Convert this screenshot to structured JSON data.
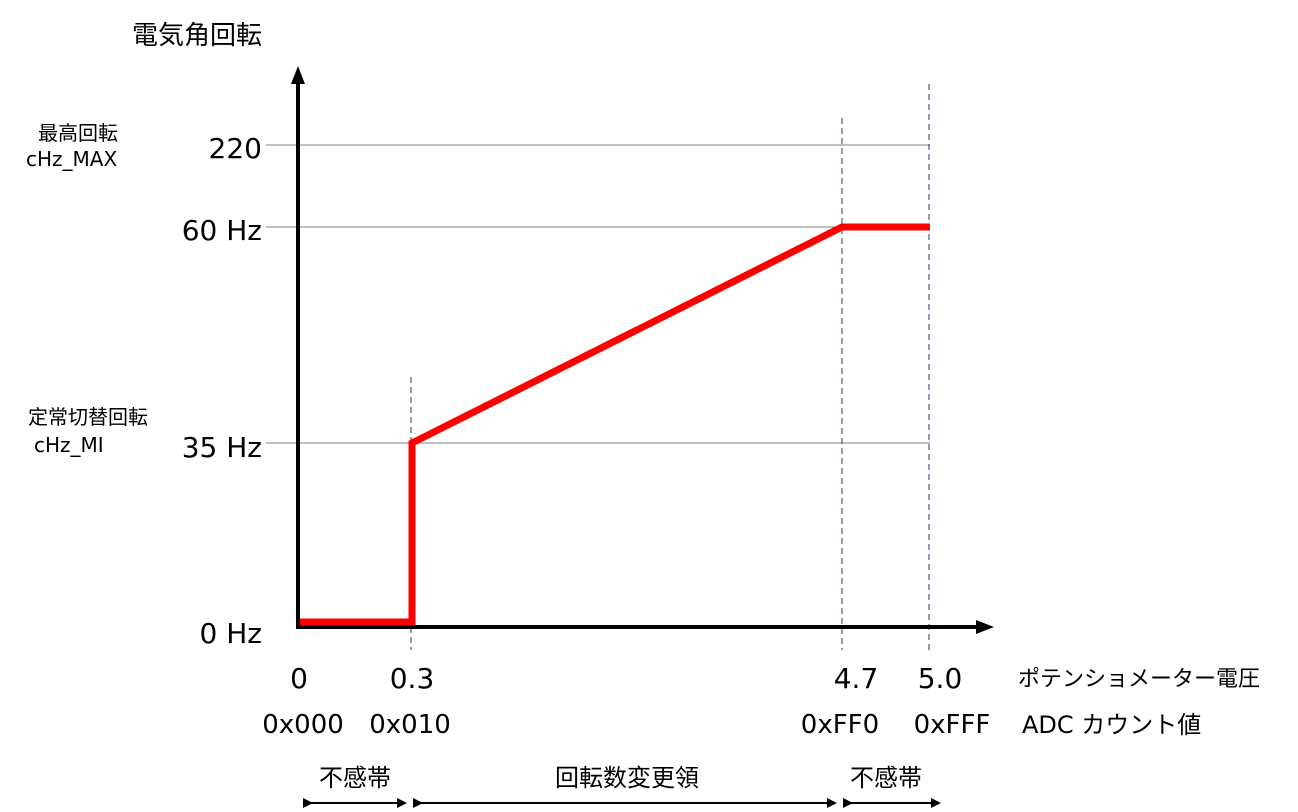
{
  "diagram": {
    "y_axis_title": "電気角回転",
    "y_side_labels": {
      "max_name": "最高回転",
      "max_const": "cHz_MAX",
      "min_name": "定常切替回転",
      "min_const": "cHz_MI"
    },
    "y_ticks": {
      "max": "220",
      "upper": "60 Hz",
      "lower": "35 Hz",
      "zero": "0 Hz"
    },
    "x_voltage_ticks": [
      "0",
      "0.3",
      "4.7",
      "5.0"
    ],
    "x_voltage_label": "ポテンショメーター電圧",
    "x_adc_ticks": [
      "0x000",
      "0x010",
      "0xFF0",
      "0xFFF"
    ],
    "x_adc_label": "ADC カウント値",
    "regions": {
      "dead_zone_left": "不感帯",
      "variable_zone": "回転数変更領",
      "dead_zone_right": "不感帯"
    },
    "colors": {
      "curve": "#ff0000",
      "axis": "#000000",
      "gridline": "#808080",
      "divider": "#1f3864"
    },
    "curve_points": [
      {
        "voltage": 0.0,
        "hz": 0
      },
      {
        "voltage": 0.3,
        "hz": 0
      },
      {
        "voltage": 0.3,
        "hz": 35
      },
      {
        "voltage": 4.7,
        "hz": 60
      },
      {
        "voltage": 5.0,
        "hz": 60
      }
    ]
  }
}
